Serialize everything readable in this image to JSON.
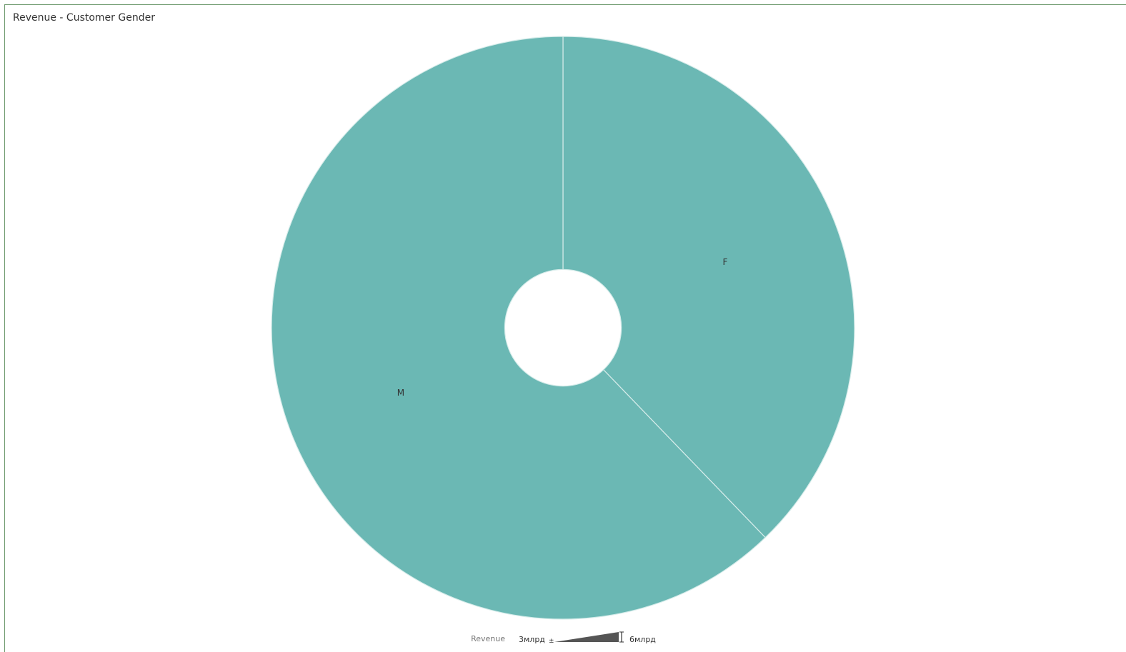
{
  "chart_data": {
    "type": "pie",
    "title": "Revenue - Customer Gender",
    "slices": [
      {
        "label": "F",
        "value": 3.25
      },
      {
        "label": "M",
        "value": 5.35
      }
    ],
    "color": "#6bb8b4",
    "inner_radius_ratio": 0.2,
    "legend": {
      "title": "Revenue",
      "min_label": "3млрд",
      "max_label": "6млрд",
      "min_value": 3,
      "max_value": 6,
      "unit": "млрд",
      "placement": "bottom-center"
    }
  }
}
